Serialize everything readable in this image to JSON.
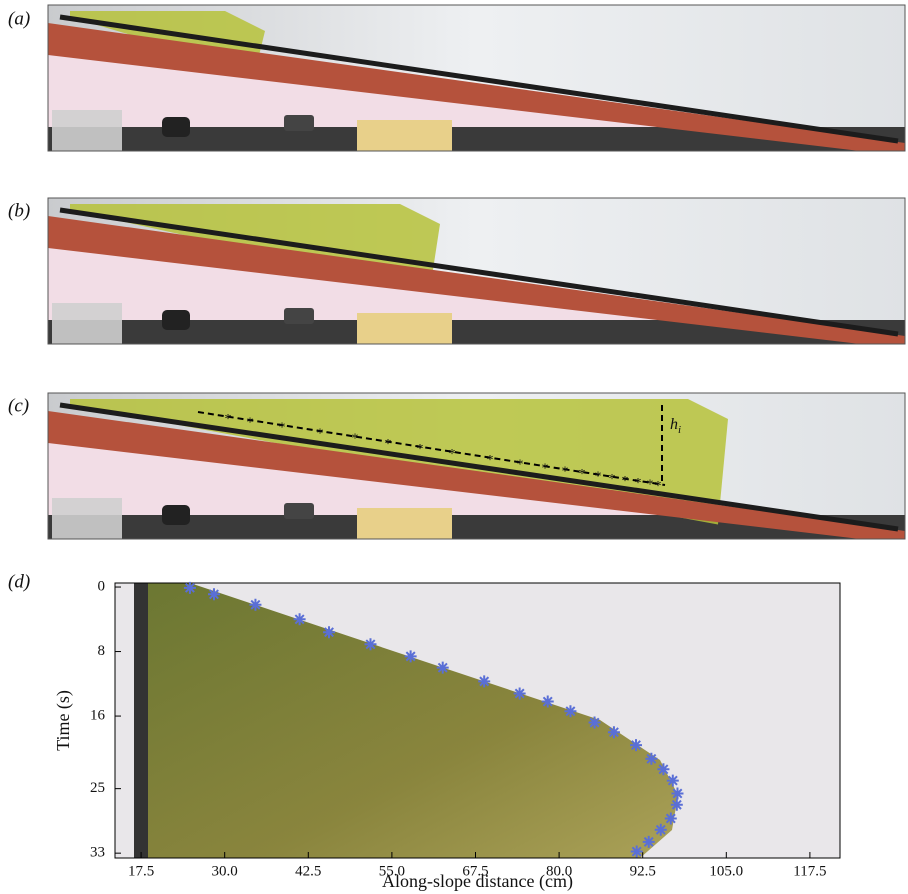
{
  "panel_labels": [
    "(a)",
    "(b)",
    "(c)",
    "(d)"
  ],
  "annotation": {
    "base": "h",
    "sub": "i"
  },
  "chart_data": {
    "type": "scatter",
    "xlabel": "Along-slope distance (cm)",
    "ylabel": "Time (s)",
    "x": [
      24.8,
      28.4,
      34.6,
      41.2,
      45.6,
      51.8,
      57.8,
      62.6,
      68.8,
      74.1,
      78.3,
      81.7,
      85.3,
      88.2,
      91.5,
      93.8,
      95.6,
      97.0,
      97.7,
      97.6,
      96.7,
      95.2,
      93.4,
      91.6
    ],
    "values": [
      0.1,
      0.9,
      2.2,
      4.0,
      5.6,
      7.1,
      8.6,
      10.0,
      11.7,
      13.2,
      14.2,
      15.4,
      16.8,
      18.0,
      19.6,
      21.3,
      22.6,
      24.0,
      25.6,
      27.0,
      28.7,
      30.1,
      31.6,
      32.8
    ],
    "color": "#5a6fd6",
    "xlim": [
      13.6,
      122
    ],
    "ylim": [
      -0.5,
      33.6
    ],
    "y_inverted": true,
    "xticks": [
      17.5,
      {
        "value": 30,
        "label": "30.0"
      },
      42.5,
      {
        "value": 55,
        "label": "55.0"
      },
      67.5,
      {
        "value": 80,
        "label": "80.0"
      },
      92.5,
      {
        "value": 105,
        "label": "105.0"
      },
      117.5
    ],
    "yticks": [
      0,
      8,
      16,
      25,
      33
    ]
  }
}
